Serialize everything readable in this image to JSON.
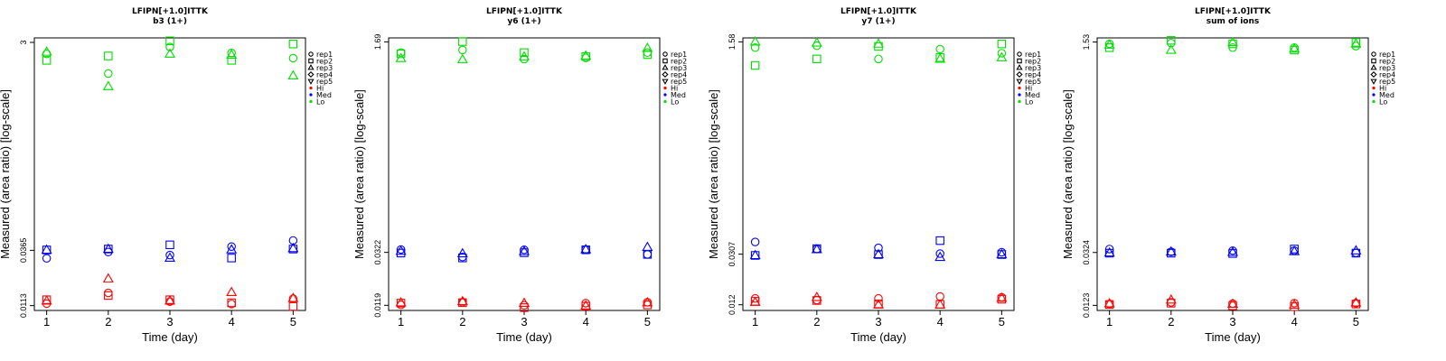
{
  "chart_data": [
    {
      "type": "scatter",
      "title": "LFIPN[+1.0]ITTK",
      "subtitle": "b3 (1+)",
      "xlabel": "Time (day)",
      "ylabel": "Measured (area ratio) [log-scale]",
      "y_scale": "log",
      "x": [
        1,
        2,
        3,
        4,
        5
      ],
      "xlim": [
        0.8,
        5.2
      ],
      "ylim": [
        0.0102,
        3.3
      ],
      "y_ticks": [
        0.0113,
        0.0365,
        3
      ],
      "y_tick_labels": [
        "0.0113",
        "0.0365",
        "3"
      ],
      "legend_position": "right",
      "legend": [
        {
          "label": "rep1",
          "symbol": "circle"
        },
        {
          "label": "rep2",
          "symbol": "square"
        },
        {
          "label": "rep3",
          "symbol": "triangle-up"
        },
        {
          "label": "rep4",
          "symbol": "diamond"
        },
        {
          "label": "rep5",
          "symbol": "triangle-down"
        },
        {
          "label": "Hi",
          "color": "#ff0000"
        },
        {
          "label": "Med",
          "color": "#0000ff"
        },
        {
          "label": "Lo",
          "color": "#00dd00"
        }
      ],
      "series": [
        {
          "name": "Hi",
          "rep": "rep1",
          "values": [
            0.0118,
            0.0148,
            0.0123,
            0.0117,
            0.0131
          ]
        },
        {
          "name": "Hi",
          "rep": "rep2",
          "values": [
            0.0128,
            0.014,
            0.0128,
            0.012,
            0.0111
          ]
        },
        {
          "name": "Hi",
          "rep": "rep3",
          "values": [
            0.0125,
            0.02,
            0.0125,
            0.015,
            0.0132
          ]
        },
        {
          "name": "Med",
          "rep": "rep1",
          "values": [
            0.0308,
            0.0352,
            0.033,
            0.0395,
            0.045
          ]
        },
        {
          "name": "Med",
          "rep": "rep2",
          "values": [
            0.0368,
            0.0375,
            0.041,
            0.031,
            0.0375
          ]
        },
        {
          "name": "Med",
          "rep": "rep3",
          "values": [
            0.0368,
            0.0375,
            0.031,
            0.037,
            0.038
          ]
        },
        {
          "name": "Lo",
          "rep": "rep1",
          "values": [
            2.35,
            1.55,
            2.72,
            2.4,
            2.15
          ]
        },
        {
          "name": "Lo",
          "rep": "rep2",
          "values": [
            2.05,
            2.25,
            3.1,
            2.05,
            2.9
          ]
        },
        {
          "name": "Lo",
          "rep": "rep3",
          "values": [
            2.45,
            1.18,
            2.35,
            2.3,
            1.48
          ]
        }
      ]
    },
    {
      "type": "scatter",
      "title": "LFIPN[+1.0]ITTK",
      "subtitle": "y6 (1+)",
      "xlabel": "Time (day)",
      "ylabel": "Measured (area ratio) [log-scale]",
      "y_scale": "log",
      "x": [
        1,
        2,
        3,
        4,
        5
      ],
      "xlim": [
        0.8,
        5.2
      ],
      "ylim": [
        0.0108,
        1.82
      ],
      "y_ticks": [
        0.0119,
        0.0322,
        1.69
      ],
      "y_tick_labels": [
        "0.0119",
        "0.0322",
        "1.69"
      ],
      "legend_position": "right",
      "legend": [
        {
          "label": "rep1",
          "symbol": "circle"
        },
        {
          "label": "rep2",
          "symbol": "square"
        },
        {
          "label": "rep3",
          "symbol": "triangle-up"
        },
        {
          "label": "rep4",
          "symbol": "diamond"
        },
        {
          "label": "rep5",
          "symbol": "triangle-down"
        },
        {
          "label": "Hi",
          "color": "#ff0000"
        },
        {
          "label": "Med",
          "color": "#0000ff"
        },
        {
          "label": "Lo",
          "color": "#00dd00"
        }
      ],
      "series": [
        {
          "name": "Hi",
          "rep": "rep1",
          "values": [
            0.012,
            0.0126,
            0.0119,
            0.0124,
            0.0126
          ]
        },
        {
          "name": "Hi",
          "rep": "rep2",
          "values": [
            0.0124,
            0.0125,
            0.0114,
            0.0117,
            0.012
          ]
        },
        {
          "name": "Hi",
          "rep": "rep3",
          "values": [
            0.0125,
            0.0128,
            0.0124,
            0.0118,
            0.0125
          ]
        },
        {
          "name": "Med",
          "rep": "rep1",
          "values": [
            0.034,
            0.0295,
            0.0338,
            0.034,
            0.031
          ]
        },
        {
          "name": "Med",
          "rep": "rep2",
          "values": [
            0.0318,
            0.029,
            0.032,
            0.0338,
            0.031
          ]
        },
        {
          "name": "Med",
          "rep": "rep3",
          "values": [
            0.033,
            0.0315,
            0.0328,
            0.034,
            0.0355
          ]
        },
        {
          "name": "Lo",
          "rep": "rep1",
          "values": [
            1.38,
            1.45,
            1.22,
            1.25,
            1.38
          ]
        },
        {
          "name": "Lo",
          "rep": "rep2",
          "values": [
            1.35,
            1.7,
            1.38,
            1.28,
            1.33
          ]
        },
        {
          "name": "Lo",
          "rep": "rep3",
          "values": [
            1.24,
            1.21,
            1.28,
            1.3,
            1.5
          ]
        }
      ]
    },
    {
      "type": "scatter",
      "title": "LFIPN[+1.0]ITTK",
      "subtitle": "y7 (1+)",
      "xlabel": "Time (day)",
      "ylabel": "Measured (area ratio) [log-scale]",
      "y_scale": "log",
      "x": [
        1,
        2,
        3,
        4,
        5
      ],
      "xlim": [
        0.8,
        5.2
      ],
      "ylim": [
        0.0108,
        1.7
      ],
      "y_ticks": [
        0.012,
        0.0307,
        1.58
      ],
      "y_tick_labels": [
        "0.012",
        "0.0307",
        "1.58"
      ],
      "legend_position": "right",
      "legend": [
        {
          "label": "rep1",
          "symbol": "circle"
        },
        {
          "label": "rep2",
          "symbol": "square"
        },
        {
          "label": "rep3",
          "symbol": "triangle-up"
        },
        {
          "label": "rep4",
          "symbol": "diamond"
        },
        {
          "label": "rep5",
          "symbol": "triangle-down"
        },
        {
          "label": "Hi",
          "color": "#ff0000"
        },
        {
          "label": "Med",
          "color": "#0000ff"
        },
        {
          "label": "Lo",
          "color": "#00dd00"
        }
      ],
      "series": [
        {
          "name": "Hi",
          "rep": "rep1",
          "values": [
            0.0135,
            0.0131,
            0.0135,
            0.014,
            0.0138
          ]
        },
        {
          "name": "Hi",
          "rep": "rep2",
          "values": [
            0.0128,
            0.013,
            0.0122,
            0.0121,
            0.0133
          ]
        },
        {
          "name": "Hi",
          "rep": "rep3",
          "values": [
            0.0126,
            0.0138,
            0.012,
            0.012,
            0.0136
          ]
        },
        {
          "name": "Med",
          "rep": "rep1",
          "values": [
            0.0385,
            0.0338,
            0.0345,
            0.031,
            0.0318
          ]
        },
        {
          "name": "Med",
          "rep": "rep2",
          "values": [
            0.03,
            0.034,
            0.0305,
            0.0395,
            0.0305
          ]
        },
        {
          "name": "Med",
          "rep": "rep3",
          "values": [
            0.03,
            0.0335,
            0.0305,
            0.029,
            0.0305
          ]
        },
        {
          "name": "Lo",
          "rep": "rep1",
          "values": [
            1.42,
            1.47,
            1.15,
            1.38,
            1.28
          ]
        },
        {
          "name": "Lo",
          "rep": "rep2",
          "values": [
            1.02,
            1.15,
            1.45,
            1.18,
            1.52
          ]
        },
        {
          "name": "Lo",
          "rep": "rep3",
          "values": [
            1.58,
            1.55,
            1.52,
            1.15,
            1.18
          ]
        }
      ]
    },
    {
      "type": "scatter",
      "title": "LFIPN[+1.0]ITTK",
      "subtitle": "sum of ions",
      "xlabel": "Time (day)",
      "ylabel": "Measured (area ratio) [log-scale]",
      "y_scale": "log",
      "x": [
        1,
        2,
        3,
        4,
        5
      ],
      "xlim": [
        0.8,
        5.2
      ],
      "ylim": [
        0.0112,
        1.65
      ],
      "y_ticks": [
        0.0123,
        0.0324,
        1.53
      ],
      "y_tick_labels": [
        "0.0123",
        "0.0324",
        "1.53"
      ],
      "legend_position": "right",
      "legend": [
        {
          "label": "rep1",
          "symbol": "circle"
        },
        {
          "label": "rep2",
          "symbol": "square"
        },
        {
          "label": "rep3",
          "symbol": "triangle-up"
        },
        {
          "label": "rep4",
          "symbol": "diamond"
        },
        {
          "label": "rep5",
          "symbol": "triangle-down"
        },
        {
          "label": "Hi",
          "color": "#ff0000"
        },
        {
          "label": "Med",
          "color": "#0000ff"
        },
        {
          "label": "Lo",
          "color": "#00dd00"
        }
      ],
      "series": [
        {
          "name": "Hi",
          "rep": "rep1",
          "values": [
            0.0126,
            0.013,
            0.0127,
            0.0128,
            0.0128
          ]
        },
        {
          "name": "Hi",
          "rep": "rep2",
          "values": [
            0.0125,
            0.0128,
            0.0122,
            0.012,
            0.0126
          ]
        },
        {
          "name": "Hi",
          "rep": "rep3",
          "values": [
            0.0127,
            0.0136,
            0.0126,
            0.0124,
            0.0129
          ]
        },
        {
          "name": "Med",
          "rep": "rep1",
          "values": [
            0.0345,
            0.0328,
            0.0335,
            0.0335,
            0.0322
          ]
        },
        {
          "name": "Med",
          "rep": "rep2",
          "values": [
            0.032,
            0.032,
            0.0318,
            0.0345,
            0.032
          ]
        },
        {
          "name": "Med",
          "rep": "rep3",
          "values": [
            0.0322,
            0.0328,
            0.0325,
            0.033,
            0.0335
          ]
        },
        {
          "name": "Lo",
          "rep": "rep1",
          "values": [
            1.48,
            1.5,
            1.38,
            1.38,
            1.42
          ]
        },
        {
          "name": "Lo",
          "rep": "rep2",
          "values": [
            1.38,
            1.58,
            1.48,
            1.32,
            1.52
          ]
        },
        {
          "name": "Lo",
          "rep": "rep3",
          "values": [
            1.45,
            1.32,
            1.52,
            1.35,
            1.48
          ]
        }
      ]
    }
  ]
}
